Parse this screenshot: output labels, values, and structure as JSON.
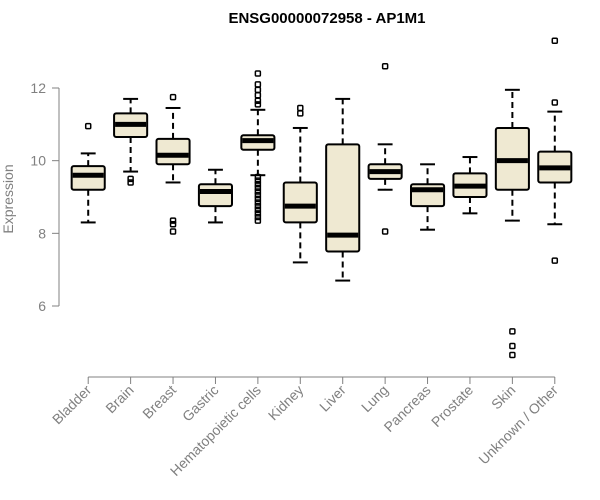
{
  "chart_data": {
    "type": "boxplot",
    "title": "ENSG00000072958 - AP1M1",
    "xlabel": "",
    "ylabel": "Expression",
    "ylim": [
      4.4,
      13.5
    ],
    "yticks": [
      6,
      8,
      10,
      12
    ],
    "categories": [
      "Bladder",
      "Brain",
      "Breast",
      "Gastric",
      "Hematopoietic cells",
      "Kidney",
      "Liver",
      "Lung",
      "Pancreas",
      "Prostate",
      "Skin",
      "Unknown / Other"
    ],
    "boxes": [
      {
        "category": "Bladder",
        "whisker_low": 8.3,
        "q1": 9.2,
        "median": 9.6,
        "q3": 9.85,
        "whisker_high": 10.2,
        "outliers": [
          10.95
        ]
      },
      {
        "category": "Brain",
        "whisker_low": 9.7,
        "q1": 10.65,
        "median": 11.0,
        "q3": 11.3,
        "whisker_high": 11.7,
        "outliers": [
          9.5,
          9.4
        ]
      },
      {
        "category": "Breast",
        "whisker_low": 9.4,
        "q1": 9.9,
        "median": 10.15,
        "q3": 10.6,
        "whisker_high": 11.45,
        "outliers": [
          11.75,
          8.35,
          8.25,
          8.05
        ]
      },
      {
        "category": "Gastric",
        "whisker_low": 8.3,
        "q1": 8.75,
        "median": 9.15,
        "q3": 9.35,
        "whisker_high": 9.75,
        "outliers": []
      },
      {
        "category": "Hematopoietic cells",
        "whisker_low": 9.6,
        "q1": 10.3,
        "median": 10.55,
        "q3": 10.7,
        "whisker_high": 11.4,
        "outliers": [
          12.4,
          12.1,
          11.95,
          11.8,
          11.65,
          11.55,
          9.55,
          9.45,
          9.35,
          9.25,
          9.15,
          9.05,
          8.95,
          8.85,
          8.75,
          8.65,
          8.55,
          8.45,
          8.35
        ]
      },
      {
        "category": "Kidney",
        "whisker_low": 7.2,
        "q1": 8.3,
        "median": 8.75,
        "q3": 9.4,
        "whisker_high": 10.9,
        "outliers": [
          11.45,
          11.3
        ]
      },
      {
        "category": "Liver",
        "whisker_low": 6.7,
        "q1": 7.5,
        "median": 7.95,
        "q3": 10.45,
        "whisker_high": 11.7,
        "outliers": []
      },
      {
        "category": "Lung",
        "whisker_low": 9.2,
        "q1": 9.5,
        "median": 9.7,
        "q3": 9.9,
        "whisker_high": 10.45,
        "outliers": [
          12.6,
          8.05
        ]
      },
      {
        "category": "Pancreas",
        "whisker_low": 8.1,
        "q1": 8.75,
        "median": 9.2,
        "q3": 9.35,
        "whisker_high": 9.9,
        "outliers": []
      },
      {
        "category": "Prostate",
        "whisker_low": 8.55,
        "q1": 9.0,
        "median": 9.3,
        "q3": 9.65,
        "whisker_high": 10.1,
        "outliers": []
      },
      {
        "category": "Skin",
        "whisker_low": 8.35,
        "q1": 9.2,
        "median": 10.0,
        "q3": 10.9,
        "whisker_high": 11.95,
        "outliers": [
          5.3,
          4.9,
          4.65
        ]
      },
      {
        "category": "Unknown / Other",
        "whisker_low": 8.25,
        "q1": 9.4,
        "median": 9.8,
        "q3": 10.25,
        "whisker_high": 11.35,
        "outliers": [
          13.3,
          11.6,
          7.25
        ]
      }
    ],
    "colors": {
      "box_fill": "#efe9d2",
      "stroke": "#000000",
      "axis": "#808080"
    },
    "grid": false
  }
}
